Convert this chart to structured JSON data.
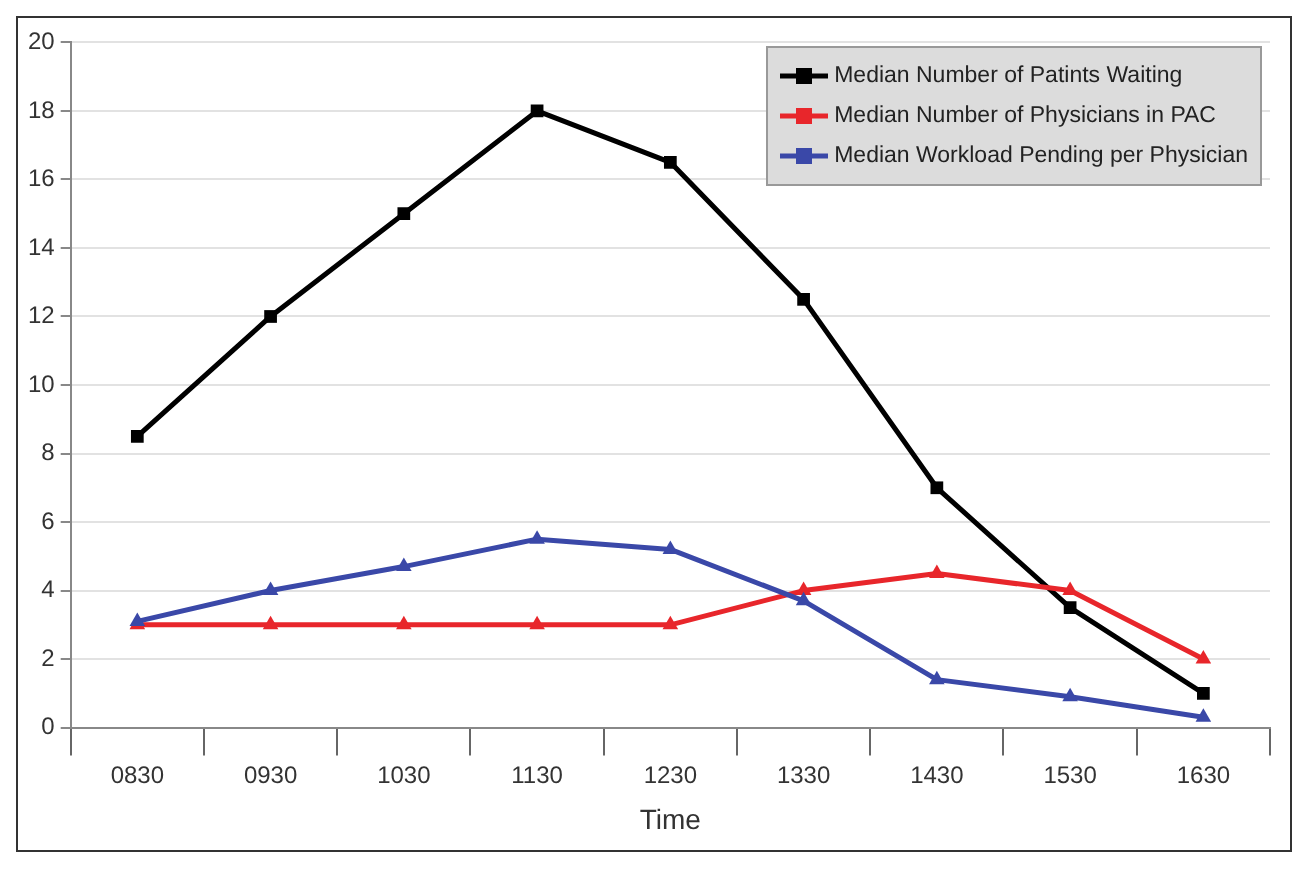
{
  "chart_data": {
    "type": "line",
    "xlabel": "Time",
    "categories": [
      "0830",
      "0930",
      "1030",
      "1130",
      "1230",
      "1330",
      "1430",
      "1530",
      "1630"
    ],
    "series": [
      {
        "name": "Median Number of Patints Waiting",
        "color": "#000000",
        "marker": "square",
        "values": [
          8.5,
          12,
          15,
          18,
          16.5,
          12.5,
          7,
          3.5,
          1
        ]
      },
      {
        "name": "Median Number of Physicians in PAC",
        "color": "#e8262b",
        "marker": "triangle",
        "values": [
          3,
          3,
          3,
          3,
          3,
          4,
          4.5,
          4,
          2
        ]
      },
      {
        "name": "Median Workload Pending per Physician",
        "color": "#3a48a8",
        "marker": "triangle",
        "values": [
          3.1,
          4,
          4.7,
          5.5,
          5.2,
          3.7,
          1.4,
          0.9,
          0.3
        ]
      }
    ],
    "ylim": [
      0,
      20
    ],
    "yticks": [
      0,
      2,
      4,
      6,
      8,
      10,
      12,
      14,
      16,
      18,
      20
    ],
    "grid": "y",
    "legend": "top right"
  }
}
